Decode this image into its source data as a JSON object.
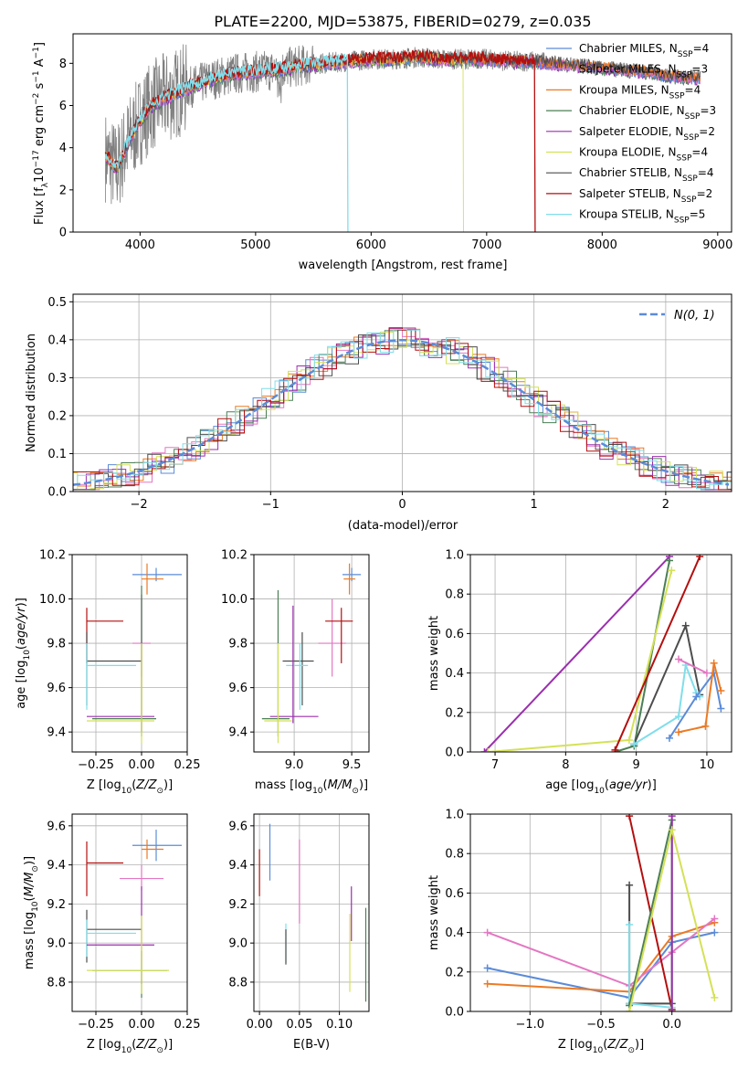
{
  "figure_title": "PLATE=2200, MJD=53875, FIBERID=0279, z=0.035",
  "colors": {
    "chabrier_miles": "#5b8bd8",
    "salpeter_miles": "#e377c2",
    "kroupa_miles": "#ec7a24",
    "chabrier_elodie": "#4b7f55",
    "salpeter_elodie": "#9b2fae",
    "kroupa_elodie": "#d4e157",
    "chabrier_stelib": "#4d4d4d",
    "salpeter_stelib": "#b40f0f",
    "kroupa_stelib": "#80deea",
    "data": "#808080",
    "normal": "#5b8bd8"
  },
  "chart_data": [
    {
      "id": "spectrum",
      "type": "line",
      "xlabel": "wavelength [Angstrom, rest frame]",
      "ylabel": "Flux [f_λ 10^-17 erg cm^-2 s^-1 A^-1]",
      "xlim": [
        3420,
        9120
      ],
      "ylim": [
        0,
        9.4
      ],
      "xticks": [
        4000,
        5000,
        6000,
        7000,
        8000,
        9000
      ],
      "yticks": [
        0,
        2,
        4,
        6,
        8
      ],
      "grid": false,
      "legend_position": "top-right",
      "legend": [
        {
          "label": "Chabrier MILES, N",
          "sub": "SSP",
          "suffix": "=4",
          "color_key": "chabrier_miles"
        },
        {
          "label": "Salpeter MILES, N",
          "sub": "SSP",
          "suffix": "=3",
          "color_key": "salpeter_miles"
        },
        {
          "label": "Kroupa MILES, N",
          "sub": "SSP",
          "suffix": "=4",
          "color_key": "kroupa_miles"
        },
        {
          "label": "Chabrier ELODIE, N",
          "sub": "SSP",
          "suffix": "=3",
          "color_key": "chabrier_elodie"
        },
        {
          "label": "Salpeter ELODIE, N",
          "sub": "SSP",
          "suffix": "=2",
          "color_key": "salpeter_elodie"
        },
        {
          "label": "Kroupa ELODIE, N",
          "sub": "SSP",
          "suffix": "=4",
          "color_key": "kroupa_elodie"
        },
        {
          "label": "Chabrier STELIB, N",
          "sub": "SSP",
          "suffix": "=4",
          "color_key": "chabrier_stelib"
        },
        {
          "label": "Salpeter STELIB, N",
          "sub": "SSP",
          "suffix": "=2",
          "color_key": "salpeter_stelib"
        },
        {
          "label": "Kroupa STELIB, N",
          "sub": "SSP",
          "suffix": "=5",
          "color_key": "kroupa_stelib"
        }
      ],
      "continuum": [
        [
          3700,
          3.6
        ],
        [
          3800,
          3.0
        ],
        [
          3900,
          4.3
        ],
        [
          4000,
          5.3
        ],
        [
          4100,
          6.0
        ],
        [
          4200,
          6.3
        ],
        [
          4400,
          6.8
        ],
        [
          4600,
          7.2
        ],
        [
          4800,
          7.5
        ],
        [
          5000,
          7.6
        ],
        [
          5200,
          7.7
        ],
        [
          5400,
          7.9
        ],
        [
          5600,
          8.0
        ],
        [
          5800,
          8.1
        ],
        [
          6000,
          8.2
        ],
        [
          6200,
          8.2
        ],
        [
          6400,
          8.3
        ],
        [
          6600,
          8.2
        ],
        [
          6800,
          8.2
        ],
        [
          7000,
          8.2
        ],
        [
          7200,
          8.1
        ],
        [
          7400,
          8.1
        ],
        [
          7600,
          8.0
        ],
        [
          7800,
          7.9
        ],
        [
          8000,
          7.8
        ],
        [
          8200,
          7.7
        ],
        [
          8400,
          7.6
        ],
        [
          8600,
          7.4
        ],
        [
          8850,
          7.3
        ]
      ],
      "model_cutoffs": {
        "kroupa_stelib": 5800,
        "kroupa_elodie": 6800,
        "salpeter_stelib": 7420
      }
    },
    {
      "id": "residuals",
      "type": "step",
      "xlabel": "(data-model)/error",
      "ylabel": "Normed distribution",
      "xlim": [
        -2.5,
        2.5
      ],
      "ylim": [
        0,
        0.52
      ],
      "xticks": [
        -2,
        -1,
        0,
        1,
        2
      ],
      "yticks": [
        0.0,
        0.1,
        0.2,
        0.3,
        0.4,
        0.5
      ],
      "grid": true,
      "legend_position": "top-right",
      "legend": [
        {
          "label": "N(0, 1)",
          "color_key": "normal"
        }
      ],
      "normal_curve": {
        "mean": 0,
        "sigma": 1
      }
    },
    {
      "id": "age_vs_z",
      "type": "errorbar",
      "xlabel": "Z [log10(Z/Z⊙)]",
      "ylabel": "age [log10(age/yr)]",
      "xlim": [
        -0.38,
        0.25
      ],
      "ylim": [
        9.31,
        10.2
      ],
      "xticks": [
        -0.25,
        0.0,
        0.25
      ],
      "yticks": [
        9.4,
        9.6,
        9.8,
        10.0,
        10.2
      ],
      "grid": true,
      "points": [
        {
          "color_key": "chabrier_miles",
          "x": 0.08,
          "xerr": [
            0.13,
            0.14
          ],
          "y": 10.11,
          "yerr": [
            0.03,
            0.03
          ]
        },
        {
          "color_key": "kroupa_miles",
          "x": 0.03,
          "xerr": [
            0.03,
            0.09
          ],
          "y": 10.09,
          "yerr": [
            0.07,
            0.07
          ]
        },
        {
          "color_key": "salpeter_miles",
          "x": 0.0,
          "xerr": [
            0.05,
            0.05
          ],
          "y": 9.8,
          "yerr": [
            0.15,
            0.2
          ]
        },
        {
          "color_key": "salpeter_stelib",
          "x": -0.3,
          "xerr": [
            0.0,
            0.2
          ],
          "y": 9.9,
          "yerr": [
            0.19,
            0.06
          ]
        },
        {
          "color_key": "chabrier_stelib",
          "x": -0.3,
          "xerr": [
            0.0,
            0.3
          ],
          "y": 9.72,
          "yerr": [
            0.2,
            0.13
          ]
        },
        {
          "color_key": "kroupa_stelib",
          "x": -0.3,
          "xerr": [
            0.0,
            0.27
          ],
          "y": 9.7,
          "yerr": [
            0.2,
            0.1
          ]
        },
        {
          "color_key": "salpeter_elodie",
          "x": 0.0,
          "xerr": [
            0.3,
            0.07
          ],
          "y": 9.47,
          "yerr": [
            0.07,
            0.55
          ]
        },
        {
          "color_key": "chabrier_elodie",
          "x": 0.0,
          "xerr": [
            0.27,
            0.08
          ],
          "y": 9.46,
          "yerr": [
            0.08,
            0.6
          ]
        },
        {
          "color_key": "kroupa_elodie",
          "x": 0.0,
          "xerr": [
            0.3,
            0.07
          ],
          "y": 9.45,
          "yerr": [
            0.1,
            0.35
          ]
        }
      ]
    },
    {
      "id": "age_vs_mass",
      "type": "errorbar",
      "xlabel": "mass [log10(M/M⊙)]",
      "ylabel": "",
      "xlim": [
        8.65,
        9.65
      ],
      "ylim": [
        9.31,
        10.2
      ],
      "xticks": [
        9.0,
        9.5
      ],
      "yticks": [
        9.4,
        9.6,
        9.8,
        10.0,
        10.2
      ],
      "grid": true,
      "points": [
        {
          "color_key": "chabrier_miles",
          "x": 9.5,
          "xerr": [
            0.08,
            0.08
          ],
          "y": 10.11,
          "yerr": [
            0.03,
            0.03
          ]
        },
        {
          "color_key": "kroupa_miles",
          "x": 9.48,
          "xerr": [
            0.05,
            0.05
          ],
          "y": 10.09,
          "yerr": [
            0.07,
            0.07
          ]
        },
        {
          "color_key": "salpeter_miles",
          "x": 9.33,
          "xerr": [
            0.12,
            0.12
          ],
          "y": 9.8,
          "yerr": [
            0.15,
            0.2
          ]
        },
        {
          "color_key": "salpeter_stelib",
          "x": 9.41,
          "xerr": [
            0.14,
            0.1
          ],
          "y": 9.9,
          "yerr": [
            0.19,
            0.06
          ]
        },
        {
          "color_key": "chabrier_stelib",
          "x": 9.07,
          "xerr": [
            0.17,
            0.1
          ],
          "y": 9.72,
          "yerr": [
            0.2,
            0.13
          ]
        },
        {
          "color_key": "kroupa_stelib",
          "x": 9.05,
          "xerr": [
            0.12,
            0.07
          ],
          "y": 9.7,
          "yerr": [
            0.2,
            0.1
          ]
        },
        {
          "color_key": "salpeter_elodie",
          "x": 8.99,
          "xerr": [
            0.2,
            0.22
          ],
          "y": 9.47,
          "yerr": [
            0.03,
            0.5
          ]
        },
        {
          "color_key": "chabrier_elodie",
          "x": 8.86,
          "xerr": [
            0.14,
            0.1
          ],
          "y": 9.46,
          "yerr": [
            0.08,
            0.58
          ]
        },
        {
          "color_key": "kroupa_elodie",
          "x": 8.86,
          "xerr": [
            0.12,
            0.12
          ],
          "y": 9.45,
          "yerr": [
            0.1,
            0.35
          ]
        }
      ]
    },
    {
      "id": "mass_weight_vs_age",
      "type": "line",
      "xlabel": "age [log10(age/yr)]",
      "ylabel": "mass weight",
      "xlim": [
        6.65,
        10.35
      ],
      "ylim": [
        0,
        1.0
      ],
      "xticks": [
        7,
        8,
        9,
        10
      ],
      "yticks": [
        0.0,
        0.2,
        0.4,
        0.6,
        0.8,
        1.0
      ],
      "grid": true,
      "series": [
        {
          "color_key": "salpeter_elodie",
          "x": [
            6.85,
            9.47
          ],
          "y": [
            0.0,
            0.99
          ]
        },
        {
          "color_key": "chabrier_elodie",
          "x": [
            8.7,
            8.97,
            9.47
          ],
          "y": [
            0.0,
            0.03,
            0.97
          ]
        },
        {
          "color_key": "kroupa_elodie",
          "x": [
            6.9,
            8.9,
            9.5
          ],
          "y": [
            0.0,
            0.06,
            0.92
          ]
        },
        {
          "color_key": "salpeter_stelib",
          "x": [
            8.7,
            9.9
          ],
          "y": [
            0.01,
            0.99
          ]
        },
        {
          "color_key": "chabrier_stelib",
          "x": [
            8.97,
            9.7,
            9.9
          ],
          "y": [
            0.04,
            0.64,
            0.29
          ]
        },
        {
          "color_key": "kroupa_stelib",
          "x": [
            8.97,
            9.6,
            9.7,
            9.85,
            9.9
          ],
          "y": [
            0.04,
            0.18,
            0.44,
            0.3,
            0.28
          ]
        },
        {
          "color_key": "chabrier_miles",
          "x": [
            9.47,
            9.85,
            10.1,
            10.2
          ],
          "y": [
            0.07,
            0.28,
            0.4,
            0.22
          ]
        },
        {
          "color_key": "salpeter_miles",
          "x": [
            9.6,
            10.0
          ],
          "y": [
            0.47,
            0.4
          ]
        },
        {
          "color_key": "kroupa_miles",
          "x": [
            9.6,
            9.98,
            10.1,
            10.2
          ],
          "y": [
            0.1,
            0.13,
            0.45,
            0.31
          ]
        }
      ]
    },
    {
      "id": "mass_vs_z",
      "type": "errorbar",
      "xlabel": "Z [log10(Z/Z⊙)]",
      "ylabel": "mass [log10(M/M⊙)]",
      "xlim": [
        -0.38,
        0.25
      ],
      "ylim": [
        8.65,
        9.66
      ],
      "xticks": [
        -0.25,
        0.0,
        0.25
      ],
      "yticks": [
        8.8,
        9.0,
        9.2,
        9.4,
        9.6
      ],
      "grid": true,
      "points": [
        {
          "color_key": "chabrier_miles",
          "x": 0.08,
          "xerr": [
            0.13,
            0.14
          ],
          "y": 9.5,
          "yerr": [
            0.08,
            0.08
          ]
        },
        {
          "color_key": "kroupa_miles",
          "x": 0.03,
          "xerr": [
            0.03,
            0.09
          ],
          "y": 9.48,
          "yerr": [
            0.05,
            0.05
          ]
        },
        {
          "color_key": "salpeter_stelib",
          "x": -0.3,
          "xerr": [
            0.0,
            0.2
          ],
          "y": 9.41,
          "yerr": [
            0.17,
            0.11
          ]
        },
        {
          "color_key": "salpeter_miles",
          "x": 0.0,
          "xerr": [
            0.12,
            0.12
          ],
          "y": 9.33,
          "yerr": [
            0.06,
            0.07
          ]
        },
        {
          "color_key": "chabrier_stelib",
          "x": -0.3,
          "xerr": [
            0.0,
            0.3
          ],
          "y": 9.07,
          "yerr": [
            0.17,
            0.1
          ]
        },
        {
          "color_key": "kroupa_stelib",
          "x": -0.3,
          "xerr": [
            0.0,
            0.27
          ],
          "y": 9.05,
          "yerr": [
            0.12,
            0.07
          ]
        },
        {
          "color_key": "salpeter_elodie",
          "x": 0.0,
          "xerr": [
            0.3,
            0.07
          ],
          "y": 8.99,
          "yerr": [
            0.2,
            0.3
          ]
        },
        {
          "color_key": "chabrier_elodie",
          "x": 0.0,
          "xerr": [
            0.27,
            0.14
          ],
          "y": 8.86,
          "yerr": [
            0.14,
            0.1
          ]
        },
        {
          "color_key": "kroupa_elodie",
          "x": 0.0,
          "xerr": [
            0.3,
            0.15
          ],
          "y": 8.86,
          "yerr": [
            0.12,
            0.28
          ]
        }
      ]
    },
    {
      "id": "mass_vs_ebv",
      "type": "errorbar",
      "xlabel": "E(B-V)",
      "ylabel": "",
      "xlim": [
        -0.007,
        0.137
      ],
      "ylim": [
        8.65,
        9.66
      ],
      "xticks": [
        0.0,
        0.05,
        0.1
      ],
      "yticks": [
        8.8,
        9.0,
        9.2,
        9.4,
        9.6
      ],
      "grid": true,
      "points": [
        {
          "color_key": "salpeter_stelib",
          "x": 0.0,
          "y": 9.38,
          "yerr": [
            0.14,
            0.1
          ]
        },
        {
          "color_key": "chabrier_miles",
          "x": 0.013,
          "y": 9.47,
          "yerr": [
            0.15,
            0.14
          ]
        },
        {
          "color_key": "kroupa_stelib",
          "x": 0.033,
          "y": 9.02,
          "yerr": [
            0.12,
            0.08
          ]
        },
        {
          "color_key": "chabrier_stelib",
          "x": 0.033,
          "y": 9.0,
          "yerr": [
            0.11,
            0.07
          ]
        },
        {
          "color_key": "salpeter_miles",
          "x": 0.05,
          "y": 9.3,
          "yerr": [
            0.2,
            0.23
          ]
        },
        {
          "color_key": "salpeter_elodie",
          "x": 0.115,
          "y": 9.13,
          "yerr": [
            0.12,
            0.16
          ]
        },
        {
          "color_key": "kroupa_elodie",
          "x": 0.113,
          "y": 8.95,
          "yerr": [
            0.2,
            0.2
          ]
        },
        {
          "color_key": "chabrier_elodie",
          "x": 0.133,
          "y": 8.93,
          "yerr": [
            0.23,
            0.25
          ]
        }
      ]
    },
    {
      "id": "mass_weight_vs_z",
      "type": "line",
      "xlabel": "Z [log10(Z/Z⊙)]",
      "ylabel": "mass weight",
      "xlim": [
        -1.42,
        0.42
      ],
      "ylim": [
        0,
        1.0
      ],
      "xticks": [
        -1.0,
        -0.5,
        0.0
      ],
      "yticks": [
        0.0,
        0.2,
        0.4,
        0.6,
        0.8,
        1.0
      ],
      "grid": true,
      "series": [
        {
          "color_key": "chabrier_miles",
          "x": [
            -1.3,
            -0.3,
            0.0,
            0.3
          ],
          "y": [
            0.22,
            0.07,
            0.35,
            0.4
          ]
        },
        {
          "color_key": "kroupa_miles",
          "x": [
            -1.3,
            -0.3,
            0.0,
            0.3
          ],
          "y": [
            0.14,
            0.1,
            0.38,
            0.45
          ]
        },
        {
          "color_key": "salpeter_miles",
          "x": [
            -1.3,
            -0.3,
            0.0,
            0.3
          ],
          "y": [
            0.4,
            0.13,
            0.3,
            0.47
          ]
        },
        {
          "color_key": "salpeter_stelib",
          "x": [
            -0.3,
            0.0
          ],
          "y": [
            0.99,
            0.01
          ]
        },
        {
          "color_key": "chabrier_stelib",
          "x": [
            -0.3,
            -0.3,
            0.0
          ],
          "y": [
            0.64,
            0.04,
            0.04
          ]
        },
        {
          "color_key": "kroupa_stelib",
          "x": [
            -0.3,
            -0.3,
            0.0
          ],
          "y": [
            0.44,
            0.04,
            0.02
          ]
        },
        {
          "color_key": "chabrier_elodie",
          "x": [
            -0.3,
            0.0,
            0.0
          ],
          "y": [
            0.03,
            0.97,
            0.0
          ]
        },
        {
          "color_key": "salpeter_elodie",
          "x": [
            0.0,
            0.0
          ],
          "y": [
            0.0,
            0.99
          ]
        },
        {
          "color_key": "kroupa_elodie",
          "x": [
            -0.3,
            0.0,
            0.3
          ],
          "y": [
            0.0,
            0.92,
            0.07
          ]
        }
      ]
    }
  ]
}
